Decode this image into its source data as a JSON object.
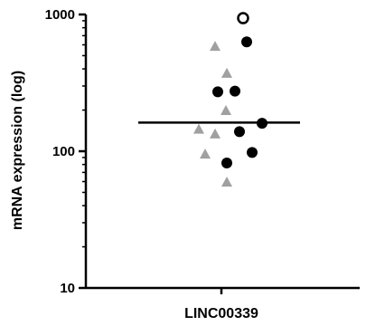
{
  "chart_data": {
    "type": "scatter",
    "title": "",
    "xlabel": "",
    "ylabel": "mRNA expression (log)",
    "y_scale": "log",
    "ylim": [
      10,
      1000
    ],
    "y_ticks": [
      {
        "value": 10,
        "label": "10"
      },
      {
        "value": 100,
        "label": "100"
      },
      {
        "value": 1000,
        "label": "1000"
      }
    ],
    "categories": [
      "LINC00339"
    ],
    "median": 162,
    "grid": false,
    "colors": {
      "filled_circle": "#000000",
      "triangle": "#a0a0a0",
      "open_circle": "#000000"
    },
    "series": [
      {
        "marker": "open-circle",
        "points": [
          {
            "x_offset": 0.24,
            "y": 940
          }
        ]
      },
      {
        "marker": "filled-circle",
        "points": [
          {
            "x_offset": 0.28,
            "y": 630
          },
          {
            "x_offset": -0.04,
            "y": 272
          },
          {
            "x_offset": 0.15,
            "y": 275
          },
          {
            "x_offset": 0.45,
            "y": 160
          },
          {
            "x_offset": 0.2,
            "y": 139
          },
          {
            "x_offset": 0.34,
            "y": 98
          },
          {
            "x_offset": 0.06,
            "y": 82
          }
        ]
      },
      {
        "marker": "triangle",
        "points": [
          {
            "x_offset": -0.07,
            "y": 590
          },
          {
            "x_offset": 0.06,
            "y": 375
          },
          {
            "x_offset": 0.05,
            "y": 200
          },
          {
            "x_offset": -0.25,
            "y": 146
          },
          {
            "x_offset": -0.07,
            "y": 135
          },
          {
            "x_offset": -0.18,
            "y": 96
          },
          {
            "x_offset": 0.06,
            "y": 60
          }
        ]
      }
    ]
  }
}
